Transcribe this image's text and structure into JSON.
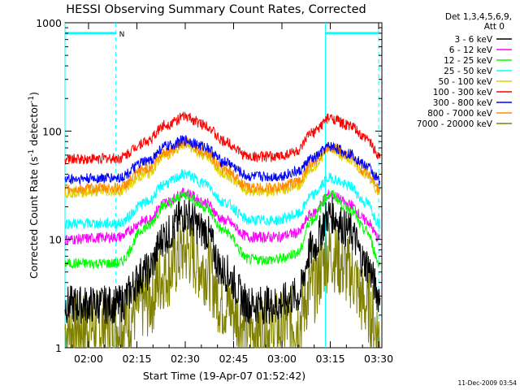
{
  "chart_data": {
    "type": "line",
    "title": "HESSI Observing Summary Count Rates, Corrected",
    "xlabel": "Start Time (19-Apr-07 01:52:42)",
    "ylabel_main": "Corrected Count Rate (s",
    "ylabel_sup1": "-1",
    "ylabel_mid": " detector",
    "ylabel_sup2": "-1",
    "ylabel_end": ")",
    "yscale": "log",
    "ylim": [
      1,
      1000
    ],
    "xlim": [
      "01:52:42",
      "03:31:00"
    ],
    "x_ticks": [
      "02:00",
      "02:15",
      "02:30",
      "02:45",
      "03:00",
      "03:15",
      "03:30"
    ],
    "y_ticks": [
      "1",
      "10",
      "100",
      "1000"
    ],
    "legend_header": [
      "Det 1,3,4,5,6,9,",
      "Att 0"
    ],
    "legend_placement": "right",
    "flag_marker": "N",
    "timestamp": "11-Dec-2009 03:54",
    "series": [
      {
        "name": "3 - 6 keV",
        "color": "#000000",
        "x": [
          "01:52:42",
          "02:09:00",
          "02:18:00",
          "02:24:00",
          "02:30:00",
          "02:36:00",
          "02:42:00",
          "02:50:00",
          "02:58:00",
          "03:05:00",
          "03:09:00",
          "03:15:00",
          "03:21:00",
          "03:26:00",
          "03:30:30"
        ],
        "y": [
          2.5,
          2.5,
          5,
          11,
          17,
          12,
          5,
          2.5,
          2.5,
          3,
          8,
          17,
          12,
          6,
          3
        ]
      },
      {
        "name": "6 - 12 keV",
        "color": "#ff00ff",
        "x": [
          "01:52:42",
          "02:09:00",
          "02:18:00",
          "02:24:00",
          "02:30:00",
          "02:36:00",
          "02:42:00",
          "02:50:00",
          "02:58:00",
          "03:05:00",
          "03:09:00",
          "03:15:00",
          "03:21:00",
          "03:26:00",
          "03:30:30"
        ],
        "y": [
          10,
          10.5,
          15,
          22,
          27,
          22,
          15,
          10.5,
          10.5,
          11.5,
          17,
          26,
          21,
          15,
          10
        ]
      },
      {
        "name": "12 - 25 keV",
        "color": "#00ff00",
        "x": [
          "01:52:42",
          "02:09:00",
          "02:18:00",
          "02:24:00",
          "02:30:00",
          "02:36:00",
          "02:42:00",
          "02:50:00",
          "02:58:00",
          "03:05:00",
          "03:09:00",
          "03:15:00",
          "03:21:00",
          "03:26:00",
          "03:30:30"
        ],
        "y": [
          6,
          6,
          13,
          21,
          26,
          20,
          12,
          6.5,
          6.5,
          7.5,
          15,
          26,
          19,
          12,
          6
        ]
      },
      {
        "name": "25 - 50 keV",
        "color": "#00ffff",
        "x": [
          "01:52:42",
          "02:09:00",
          "02:18:00",
          "02:24:00",
          "02:30:00",
          "02:36:00",
          "02:42:00",
          "02:50:00",
          "02:58:00",
          "03:05:00",
          "03:09:00",
          "03:15:00",
          "03:21:00",
          "03:26:00",
          "03:30:30"
        ],
        "y": [
          14,
          14,
          22,
          33,
          40,
          33,
          22,
          15,
          15,
          17,
          25,
          37,
          31,
          22,
          14
        ]
      },
      {
        "name": "50 - 100 keV",
        "color": "#e0d000",
        "x": [
          "01:52:42",
          "02:09:00",
          "02:18:00",
          "02:24:00",
          "02:30:00",
          "02:36:00",
          "02:42:00",
          "02:50:00",
          "02:58:00",
          "03:05:00",
          "03:09:00",
          "03:15:00",
          "03:21:00",
          "03:26:00",
          "03:30:30"
        ],
        "y": [
          27,
          28,
          40,
          60,
          75,
          60,
          40,
          28,
          28,
          31,
          45,
          68,
          55,
          40,
          27
        ]
      },
      {
        "name": "100 - 300 keV",
        "color": "#ff0000",
        "x": [
          "01:52:42",
          "02:09:00",
          "02:18:00",
          "02:24:00",
          "02:30:00",
          "02:36:00",
          "02:42:00",
          "02:50:00",
          "02:58:00",
          "03:05:00",
          "03:09:00",
          "03:15:00",
          "03:21:00",
          "03:26:00",
          "03:30:30"
        ],
        "y": [
          55,
          56,
          80,
          115,
          135,
          115,
          80,
          58,
          58,
          65,
          95,
          132,
          112,
          85,
          60
        ]
      },
      {
        "name": "300 - 800 keV",
        "color": "#0000ff",
        "x": [
          "01:52:42",
          "02:09:00",
          "02:18:00",
          "02:24:00",
          "02:30:00",
          "02:36:00",
          "02:42:00",
          "02:50:00",
          "02:58:00",
          "03:05:00",
          "03:09:00",
          "03:15:00",
          "03:21:00",
          "03:26:00",
          "03:30:30"
        ],
        "y": [
          36,
          37,
          52,
          72,
          82,
          72,
          52,
          38,
          38,
          42,
          55,
          72,
          62,
          48,
          35
        ]
      },
      {
        "name": "800 - 7000 keV",
        "color": "#ff8c00",
        "x": [
          "01:52:42",
          "02:09:00",
          "02:18:00",
          "02:24:00",
          "02:30:00",
          "02:36:00",
          "02:42:00",
          "02:50:00",
          "02:58:00",
          "03:05:00",
          "03:09:00",
          "03:15:00",
          "03:21:00",
          "03:26:00",
          "03:30:30"
        ],
        "y": [
          29,
          30,
          45,
          65,
          78,
          65,
          45,
          30,
          30,
          34,
          50,
          72,
          60,
          42,
          29
        ]
      },
      {
        "name": "7000 - 20000 keV",
        "color": "#808000",
        "x": [
          "01:52:42",
          "02:09:00",
          "02:18:00",
          "02:24:00",
          "02:30:00",
          "02:36:00",
          "02:42:00",
          "02:50:00",
          "02:58:00",
          "03:05:00",
          "03:09:00",
          "03:15:00",
          "03:21:00",
          "03:26:00",
          "03:30:30"
        ],
        "y": [
          1.5,
          1.6,
          2.6,
          5,
          8,
          5.5,
          2.6,
          1.5,
          1.5,
          1.8,
          3.5,
          7.5,
          5,
          2.5,
          1.3
        ]
      }
    ],
    "vertical_markers": [
      {
        "x": "01:52:42",
        "style": "solid",
        "color": "#00ffff"
      },
      {
        "x": "02:08:30",
        "style": "dashed",
        "color": "#00ffff"
      },
      {
        "x": "03:13:30",
        "style": "solid",
        "color": "#00ffff"
      },
      {
        "x": "03:30:00",
        "style": "dashed",
        "color": "#00ffff"
      }
    ],
    "night_bars": [
      {
        "start": "01:52:42",
        "end": "02:08:30",
        "value": 800,
        "color": "#00ffff"
      },
      {
        "start": "03:13:30",
        "end": "03:30:00",
        "value": 800,
        "color": "#00ffff"
      }
    ]
  }
}
